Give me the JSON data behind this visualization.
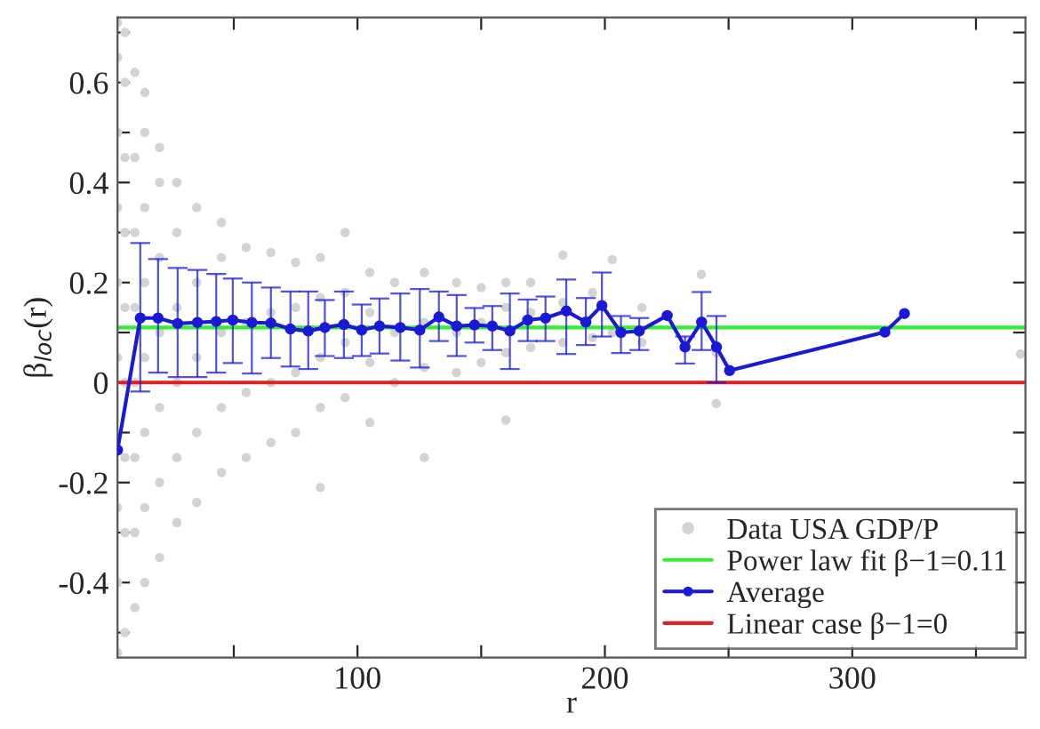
{
  "chart_data": {
    "type": "line",
    "xlabel": "r",
    "ylabel": "β$_{loc}$(r)",
    "xlim": [
      3,
      370
    ],
    "ylim": [
      -0.55,
      0.73
    ],
    "xticks": [
      {
        "value": 50,
        "label": null
      },
      100,
      {
        "value": 150,
        "label": null
      },
      200,
      {
        "value": 250,
        "label": null
      },
      300,
      {
        "value": 350,
        "label": null
      }
    ],
    "yticks": [
      {
        "value": -0.5,
        "label": null
      },
      -0.4,
      {
        "value": -0.3,
        "label": null
      },
      -0.2,
      {
        "value": -0.1,
        "label": null
      },
      {
        "value": 0,
        "label": "0"
      },
      {
        "value": 0.1,
        "label": null
      },
      0.2,
      {
        "value": 0.3,
        "label": null
      },
      0.4,
      {
        "value": 0.5,
        "label": null
      },
      0.6,
      {
        "value": 0.7,
        "label": null
      }
    ],
    "grid": false,
    "legend": "bottom right",
    "series": [
      {
        "name": "Data USA GDP/P",
        "type": "scatter",
        "color": "#d3d3d3",
        "marker": "circle",
        "x": [
          3,
          3,
          3,
          3,
          3,
          3,
          3,
          3,
          3,
          3,
          6,
          6,
          6,
          6,
          6,
          6,
          6,
          6,
          6,
          10,
          10,
          10,
          10,
          10,
          10,
          10,
          10,
          14,
          14,
          14,
          14,
          14,
          14,
          14,
          14,
          20,
          20,
          20,
          20,
          20,
          20,
          20,
          27,
          27,
          27,
          27,
          27,
          27,
          35,
          35,
          35,
          35,
          35,
          45,
          45,
          45,
          45,
          45,
          55,
          55,
          55,
          55,
          65,
          65,
          65,
          65,
          75,
          75,
          75,
          75,
          85,
          85,
          85,
          85,
          85,
          95,
          95,
          95,
          95,
          105,
          105,
          105,
          105,
          115,
          115,
          115,
          127,
          127,
          127,
          127,
          140,
          140,
          140,
          150,
          150,
          150,
          160,
          160,
          160,
          160,
          170,
          170,
          170,
          183,
          183,
          183,
          195,
          195,
          203,
          203,
          215,
          215,
          239,
          245,
          245,
          368
        ],
        "values": [
          -0.54,
          -0.4,
          -0.25,
          -0.1,
          0.05,
          0.2,
          0.35,
          0.5,
          0.65,
          0.72,
          -0.5,
          -0.3,
          -0.15,
          0.0,
          0.15,
          0.3,
          0.45,
          0.6,
          0.7,
          -0.45,
          -0.3,
          -0.15,
          0.0,
          0.15,
          0.3,
          0.45,
          0.62,
          -0.4,
          -0.25,
          -0.1,
          0.05,
          0.2,
          0.35,
          0.5,
          0.58,
          -0.35,
          -0.2,
          -0.05,
          0.1,
          0.25,
          0.4,
          0.47,
          -0.28,
          -0.15,
          0.0,
          0.15,
          0.3,
          0.4,
          -0.24,
          -0.1,
          0.05,
          0.2,
          0.35,
          -0.18,
          -0.05,
          0.1,
          0.25,
          0.32,
          -0.15,
          -0.02,
          0.12,
          0.27,
          -0.12,
          0.0,
          0.14,
          0.26,
          -0.1,
          0.02,
          0.15,
          0.24,
          -0.21,
          -0.05,
          0.05,
          0.17,
          0.25,
          -0.03,
          0.08,
          0.18,
          0.3,
          -0.08,
          0.04,
          0.14,
          0.22,
          0.0,
          0.1,
          0.2,
          -0.15,
          0.03,
          0.12,
          0.22,
          0.02,
          0.1,
          0.2,
          0.04,
          0.12,
          0.19,
          -0.075,
          0.06,
          0.15,
          0.2,
          0.07,
          0.14,
          0.2,
          0.255,
          0.08,
          0.16,
          0.09,
          0.18,
          0.246,
          0.1,
          0.08,
          0.15,
          0.216,
          -0.042,
          0.06,
          0.057
        ]
      },
      {
        "name": "Power law fit β−1=0.11",
        "color": "#33ee33",
        "marker": "none",
        "x": [
          3,
          370
        ],
        "values": [
          0.11,
          0.11
        ]
      },
      {
        "name": "Average",
        "color": "#1a1ad6",
        "marker": "circle",
        "x": [
          3,
          12.2,
          19.4,
          27.3,
          35.3,
          42.9,
          49.6,
          57.3,
          65,
          72.9,
          80.1,
          86.8,
          94.5,
          101.7,
          108.9,
          117.3,
          125.2,
          132.9,
          140.1,
          147.3,
          154.5,
          161.6,
          168.8,
          176,
          184.4,
          192.3,
          198.8,
          206.5,
          213.9,
          225.2,
          232.4,
          239.1,
          245.1,
          250.4,
          313.2,
          321.1
        ],
        "values": [
          -0.135,
          0.129,
          0.129,
          0.118,
          0.12,
          0.122,
          0.125,
          0.12,
          0.119,
          0.107,
          0.103,
          0.11,
          0.116,
          0.105,
          0.113,
          0.11,
          0.105,
          0.131,
          0.113,
          0.115,
          0.113,
          0.103,
          0.125,
          0.129,
          0.143,
          0.121,
          0.154,
          0.1,
          0.103,
          0.134,
          0.071,
          0.121,
          0.071,
          0.024,
          0.101,
          0.138
        ],
        "errors": [
          null,
          [
            -0.018,
            0.279
          ],
          [
            0.02,
            0.247
          ],
          [
            0.011,
            0.229
          ],
          [
            0.011,
            0.225
          ],
          [
            0.02,
            0.217
          ],
          [
            0.039,
            0.208
          ],
          [
            0.018,
            0.2
          ],
          [
            0.049,
            0.19
          ],
          [
            0.032,
            0.182
          ],
          [
            0.027,
            0.182
          ],
          [
            0.053,
            0.165
          ],
          [
            0.049,
            0.182
          ],
          [
            0.053,
            0.156
          ],
          [
            0.058,
            0.168
          ],
          [
            0.044,
            0.178
          ],
          [
            0.03,
            0.187
          ],
          [
            0.083,
            0.182
          ],
          [
            0.053,
            0.175
          ],
          [
            0.08,
            0.149
          ],
          [
            0.065,
            0.153
          ],
          [
            0.027,
            0.178
          ],
          [
            0.083,
            0.166
          ],
          [
            0.083,
            0.172
          ],
          [
            0.057,
            0.206
          ],
          [
            0.075,
            0.169
          ],
          [
            0.092,
            0.22
          ],
          [
            0.059,
            0.133
          ],
          [
            0.065,
            0.129
          ],
          null,
          [
            0.038,
            0.092
          ],
          [
            0.065,
            0.181
          ],
          [
            0.0,
            0.133
          ],
          null,
          null,
          null
        ]
      },
      {
        "name": "Linear case β−1=0",
        "color": "#dd2222",
        "marker": "none",
        "x": [
          3,
          370
        ],
        "values": [
          0,
          0
        ]
      }
    ]
  }
}
